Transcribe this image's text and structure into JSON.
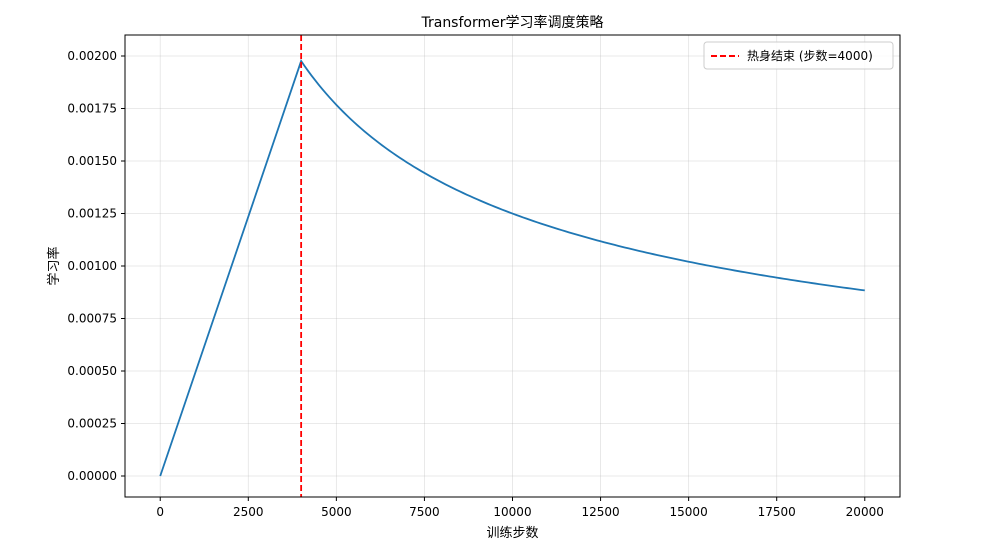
{
  "chart_data": {
    "type": "line",
    "title": "Transformer学习率调度策略",
    "xlabel": "训练步数",
    "ylabel": "学习率",
    "xlim": [
      -1000,
      21000
    ],
    "ylim": [
      -0.0001,
      0.0021
    ],
    "xticks": [
      0,
      2500,
      5000,
      7500,
      10000,
      12500,
      15000,
      17500,
      20000
    ],
    "xtick_labels": [
      "0",
      "2500",
      "5000",
      "7500",
      "10000",
      "12500",
      "15000",
      "17500",
      "20000"
    ],
    "yticks": [
      0,
      0.00025,
      0.0005,
      0.00075,
      0.001,
      0.00125,
      0.0015,
      0.00175,
      0.002
    ],
    "ytick_labels": [
      "0.00000",
      "0.00025",
      "0.00050",
      "0.00075",
      "0.00100",
      "0.00125",
      "0.00150",
      "0.00175",
      "0.00200"
    ],
    "grid": true,
    "legend_position": "top-right",
    "series": [
      {
        "color": "#1f77b4",
        "style": "solid",
        "x": [
          0,
          4000,
          4500,
          5000,
          6000,
          7000,
          8000,
          9000,
          10000,
          11000,
          12000,
          13000,
          14000,
          15000,
          16000,
          17000,
          18000,
          19000,
          20000
        ],
        "y": [
          0,
          0.001976,
          0.001863,
          0.001768,
          0.001614,
          0.001494,
          0.001398,
          0.001318,
          0.00125,
          0.001192,
          0.001141,
          0.001096,
          0.001057,
          0.001021,
          0.000988,
          0.000959,
          0.000932,
          0.000907,
          0.000884
        ]
      }
    ],
    "vlines": [
      {
        "name": "热身结束 (步数=4000)",
        "x": 4000,
        "color": "#ff0000",
        "style": "dashed"
      }
    ]
  }
}
